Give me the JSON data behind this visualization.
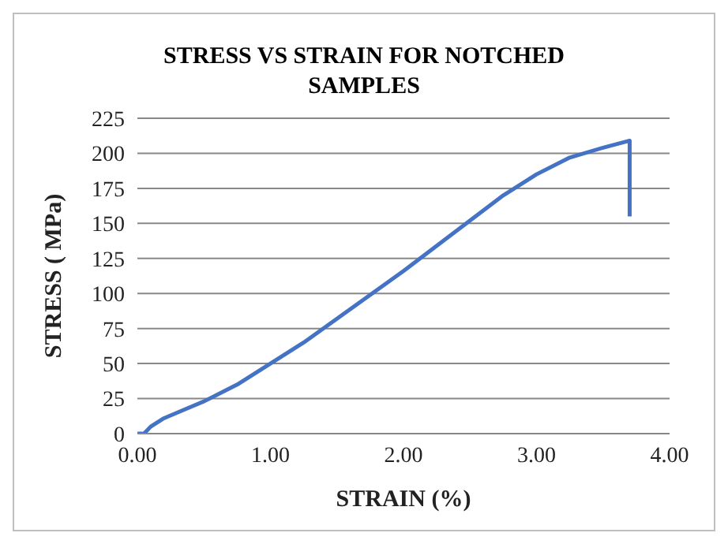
{
  "chart_data": {
    "type": "line",
    "title": "STRESS VS STRAIN FOR NOTCHED SAMPLES",
    "xlabel": "STRAIN (%)",
    "ylabel": "STRESS ( MPa)",
    "series": [
      {
        "color": "#4472c4",
        "x": [
          0,
          0.05,
          0.1,
          0.2,
          0.35,
          0.5,
          0.75,
          1.0,
          1.25,
          1.5,
          1.75,
          2.0,
          2.25,
          2.5,
          2.75,
          3.0,
          3.25,
          3.5,
          3.7,
          3.7
        ],
        "values": [
          0,
          0,
          5,
          11,
          17,
          23,
          35,
          50,
          65,
          82,
          99,
          116,
          134,
          152,
          170,
          185,
          197,
          204,
          209,
          155
        ]
      }
    ],
    "xlim": [
      0,
      4
    ],
    "xticks": [
      {
        "value": 0,
        "label": "0.00"
      },
      {
        "value": 1,
        "label": "1.00"
      },
      {
        "value": 2,
        "label": "2.00"
      },
      {
        "value": 3,
        "label": "3.00"
      },
      {
        "value": 4,
        "label": "4.00"
      }
    ],
    "ylim": [
      0,
      225
    ],
    "yticks": [
      0,
      25,
      50,
      75,
      100,
      125,
      150,
      175,
      200,
      225
    ],
    "grid": "y",
    "marker": "none",
    "line_style": "solid"
  }
}
